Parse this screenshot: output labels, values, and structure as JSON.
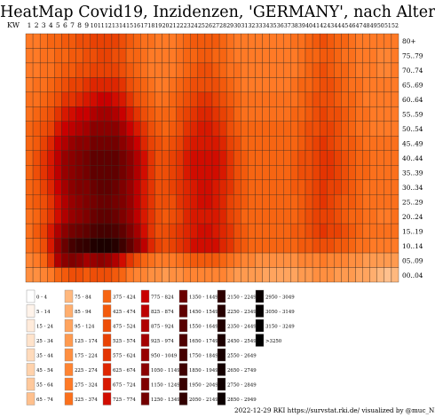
{
  "title": "HeatMap Covid19, Inzidenzen, 'GERMANY', nach Alter",
  "x_axis_label": "KW",
  "footer": "2022-12-29 RKI https://survstat.rki.de/ visualized by @muc_NEKO",
  "chart_data": {
    "type": "heatmap",
    "weeks": [
      1,
      2,
      3,
      4,
      5,
      6,
      7,
      8,
      9,
      10,
      11,
      12,
      13,
      14,
      15,
      16,
      17,
      18,
      19,
      20,
      21,
      22,
      23,
      24,
      25,
      26,
      27,
      28,
      29,
      30,
      31,
      32,
      33,
      34,
      35,
      36,
      37,
      38,
      39,
      40,
      41,
      42,
      43,
      44,
      45,
      46,
      47,
      48,
      49,
      50,
      51,
      52
    ],
    "age_groups_top_to_bottom": [
      "80+",
      "75..79",
      "70..74",
      "65..69",
      "60..64",
      "55..59",
      "50..54",
      "45..49",
      "40..44",
      "35..39",
      "30..34",
      "25..29",
      "20..24",
      "15..19",
      "10..14",
      "05..09",
      "00..04"
    ],
    "values_note": "incidence per 100k, estimated from colours",
    "values": [
      [
        300,
        320,
        350,
        380,
        420,
        440,
        460,
        480,
        500,
        540,
        560,
        560,
        540,
        500,
        440,
        400,
        360,
        330,
        300,
        300,
        320,
        350,
        400,
        440,
        460,
        460,
        440,
        400,
        360,
        320,
        300,
        300,
        300,
        300,
        300,
        300,
        300,
        330,
        360,
        400,
        440,
        480,
        460,
        420,
        380,
        340,
        320,
        300,
        290,
        280,
        280,
        290
      ],
      [
        280,
        300,
        330,
        360,
        400,
        420,
        440,
        460,
        480,
        520,
        540,
        540,
        520,
        480,
        420,
        380,
        340,
        310,
        290,
        290,
        310,
        340,
        380,
        420,
        440,
        440,
        420,
        380,
        340,
        310,
        290,
        290,
        290,
        290,
        290,
        290,
        290,
        320,
        350,
        380,
        420,
        460,
        440,
        400,
        360,
        330,
        310,
        290,
        280,
        270,
        270,
        280
      ],
      [
        280,
        300,
        330,
        360,
        400,
        430,
        460,
        480,
        500,
        540,
        560,
        560,
        540,
        500,
        440,
        390,
        350,
        320,
        300,
        300,
        320,
        360,
        420,
        460,
        480,
        480,
        460,
        420,
        370,
        330,
        300,
        300,
        300,
        300,
        300,
        300,
        300,
        320,
        360,
        400,
        440,
        480,
        460,
        420,
        380,
        340,
        310,
        290,
        280,
        270,
        270,
        280
      ],
      [
        300,
        330,
        360,
        400,
        450,
        500,
        540,
        560,
        580,
        640,
        660,
        660,
        640,
        580,
        500,
        440,
        390,
        350,
        320,
        320,
        350,
        400,
        460,
        500,
        520,
        520,
        500,
        460,
        400,
        350,
        320,
        320,
        320,
        320,
        320,
        320,
        320,
        340,
        380,
        420,
        460,
        500,
        480,
        440,
        400,
        360,
        330,
        300,
        290,
        280,
        280,
        290
      ],
      [
        330,
        360,
        400,
        460,
        520,
        580,
        620,
        660,
        680,
        760,
        800,
        800,
        760,
        680,
        580,
        500,
        440,
        390,
        350,
        350,
        380,
        440,
        500,
        560,
        580,
        580,
        560,
        500,
        440,
        380,
        340,
        340,
        340,
        340,
        340,
        340,
        340,
        360,
        400,
        440,
        480,
        520,
        500,
        460,
        420,
        380,
        350,
        320,
        300,
        290,
        290,
        300
      ],
      [
        360,
        400,
        450,
        520,
        600,
        680,
        740,
        780,
        820,
        900,
        940,
        940,
        900,
        800,
        680,
        580,
        500,
        440,
        390,
        380,
        420,
        480,
        560,
        620,
        640,
        640,
        620,
        560,
        480,
        420,
        370,
        360,
        360,
        360,
        360,
        360,
        360,
        380,
        420,
        460,
        500,
        540,
        520,
        480,
        440,
        400,
        360,
        330,
        310,
        300,
        300,
        310
      ],
      [
        380,
        430,
        490,
        570,
        680,
        780,
        860,
        920,
        960,
        1050,
        1100,
        1100,
        1050,
        940,
        800,
        680,
        580,
        500,
        430,
        420,
        460,
        520,
        600,
        660,
        680,
        680,
        660,
        600,
        520,
        450,
        390,
        380,
        380,
        380,
        380,
        380,
        380,
        400,
        440,
        480,
        520,
        560,
        540,
        500,
        450,
        410,
        370,
        340,
        320,
        310,
        310,
        320
      ],
      [
        400,
        460,
        540,
        640,
        780,
        900,
        1000,
        1080,
        1120,
        1250,
        1300,
        1300,
        1250,
        1100,
        940,
        780,
        660,
        560,
        480,
        460,
        500,
        560,
        640,
        700,
        720,
        720,
        700,
        640,
        560,
        480,
        420,
        400,
        400,
        400,
        400,
        400,
        400,
        420,
        460,
        500,
        540,
        580,
        560,
        520,
        470,
        430,
        390,
        360,
        340,
        330,
        330,
        340
      ],
      [
        420,
        480,
        580,
        700,
        860,
        1000,
        1140,
        1240,
        1300,
        1450,
        1520,
        1520,
        1450,
        1280,
        1080,
        900,
        740,
        620,
        520,
        500,
        540,
        600,
        680,
        740,
        760,
        760,
        740,
        680,
        600,
        520,
        450,
        420,
        420,
        420,
        420,
        420,
        420,
        440,
        480,
        520,
        560,
        600,
        580,
        540,
        490,
        450,
        410,
        380,
        360,
        350,
        350,
        360
      ],
      [
        420,
        480,
        580,
        700,
        860,
        1000,
        1140,
        1240,
        1300,
        1450,
        1520,
        1520,
        1450,
        1280,
        1080,
        900,
        740,
        620,
        520,
        500,
        540,
        600,
        680,
        740,
        760,
        760,
        740,
        680,
        600,
        520,
        450,
        420,
        420,
        420,
        420,
        420,
        420,
        440,
        480,
        520,
        560,
        600,
        580,
        540,
        490,
        450,
        410,
        380,
        360,
        350,
        350,
        360
      ],
      [
        400,
        460,
        540,
        650,
        800,
        940,
        1060,
        1160,
        1220,
        1380,
        1460,
        1460,
        1380,
        1220,
        1040,
        860,
        720,
        600,
        510,
        490,
        530,
        590,
        660,
        720,
        740,
        740,
        720,
        660,
        580,
        500,
        440,
        410,
        410,
        410,
        410,
        410,
        410,
        430,
        470,
        510,
        550,
        590,
        570,
        530,
        480,
        440,
        400,
        370,
        350,
        340,
        340,
        350
      ],
      [
        380,
        440,
        520,
        620,
        760,
        900,
        1020,
        1120,
        1180,
        1340,
        1420,
        1420,
        1340,
        1180,
        1000,
        840,
        700,
        590,
        500,
        480,
        520,
        580,
        650,
        710,
        730,
        730,
        710,
        650,
        570,
        490,
        430,
        400,
        400,
        400,
        400,
        400,
        400,
        420,
        460,
        500,
        540,
        580,
        560,
        520,
        470,
        430,
        390,
        360,
        340,
        330,
        330,
        340
      ],
      [
        360,
        420,
        500,
        600,
        740,
        880,
        1000,
        1100,
        1160,
        1400,
        1500,
        1500,
        1400,
        1200,
        1000,
        840,
        700,
        580,
        490,
        470,
        510,
        570,
        640,
        700,
        720,
        720,
        700,
        640,
        560,
        480,
        420,
        390,
        390,
        390,
        390,
        390,
        390,
        410,
        450,
        490,
        530,
        570,
        550,
        510,
        460,
        420,
        380,
        350,
        330,
        320,
        320,
        330
      ],
      [
        360,
        430,
        540,
        700,
        900,
        1100,
        1280,
        1400,
        1480,
        1700,
        1800,
        1800,
        1700,
        1460,
        1180,
        940,
        760,
        620,
        520,
        490,
        530,
        590,
        660,
        720,
        740,
        740,
        720,
        660,
        580,
        500,
        440,
        410,
        410,
        410,
        410,
        410,
        410,
        430,
        470,
        510,
        550,
        590,
        570,
        530,
        480,
        440,
        400,
        370,
        350,
        340,
        340,
        350
      ],
      [
        330,
        400,
        520,
        720,
        1000,
        1400,
        1800,
        2000,
        2100,
        2400,
        2500,
        2500,
        2300,
        1900,
        1450,
        1100,
        840,
        660,
        540,
        500,
        540,
        600,
        670,
        730,
        750,
        750,
        730,
        670,
        590,
        510,
        440,
        410,
        400,
        400,
        400,
        400,
        400,
        410,
        440,
        470,
        500,
        520,
        500,
        470,
        430,
        400,
        370,
        340,
        320,
        310,
        310,
        320
      ],
      [
        260,
        320,
        420,
        600,
        900,
        1100,
        1200,
        1100,
        950,
        1000,
        1050,
        1000,
        900,
        750,
        600,
        480,
        400,
        340,
        300,
        290,
        310,
        350,
        400,
        440,
        460,
        460,
        440,
        400,
        350,
        300,
        260,
        240,
        220,
        210,
        200,
        200,
        200,
        210,
        230,
        250,
        270,
        280,
        270,
        250,
        230,
        210,
        190,
        170,
        150,
        140,
        140,
        150
      ],
      [
        180,
        200,
        240,
        300,
        380,
        440,
        480,
        480,
        460,
        480,
        500,
        480,
        440,
        380,
        320,
        270,
        230,
        200,
        180,
        170,
        180,
        200,
        230,
        260,
        270,
        270,
        260,
        230,
        200,
        170,
        150,
        140,
        130,
        120,
        110,
        110,
        110,
        120,
        140,
        160,
        180,
        200,
        190,
        170,
        150,
        130,
        110,
        95,
        85,
        75,
        70,
        75
      ]
    ],
    "legend": [
      {
        "label": "0 - 4",
        "color": "#ffffff"
      },
      {
        "label": "5 - 14",
        "color": "#fff3ea"
      },
      {
        "label": "15 - 24",
        "color": "#ffebdb"
      },
      {
        "label": "25 - 34",
        "color": "#ffe3cb"
      },
      {
        "label": "35 - 44",
        "color": "#ffdbbc"
      },
      {
        "label": "45 - 54",
        "color": "#ffd2ac"
      },
      {
        "label": "55 - 64",
        "color": "#ffc99c"
      },
      {
        "label": "65 - 74",
        "color": "#ffc08d"
      },
      {
        "label": "75 - 84",
        "color": "#ffb87e"
      },
      {
        "label": "85 - 94",
        "color": "#ffae6e"
      },
      {
        "label": "95 - 124",
        "color": "#ffa45e"
      },
      {
        "label": "125 - 174",
        "color": "#ff9a4f"
      },
      {
        "label": "175 - 224",
        "color": "#ff8f40"
      },
      {
        "label": "225 - 274",
        "color": "#ff8432"
      },
      {
        "label": "275 - 324",
        "color": "#ff7a26"
      },
      {
        "label": "325 - 374",
        "color": "#fb701c"
      },
      {
        "label": "375 - 424",
        "color": "#f76512"
      },
      {
        "label": "425 - 474",
        "color": "#f35a0c"
      },
      {
        "label": "475 - 524",
        "color": "#ee4e08"
      },
      {
        "label": "525 - 574",
        "color": "#e94204"
      },
      {
        "label": "575 - 624",
        "color": "#e43402"
      },
      {
        "label": "625 - 674",
        "color": "#de2601"
      },
      {
        "label": "675 - 724",
        "color": "#d81800"
      },
      {
        "label": "725 - 774",
        "color": "#d10c00"
      },
      {
        "label": "775 - 824",
        "color": "#c90000"
      },
      {
        "label": "825 - 874",
        "color": "#bd0000"
      },
      {
        "label": "875 - 924",
        "color": "#b00000"
      },
      {
        "label": "925 - 974",
        "color": "#a40000"
      },
      {
        "label": "950 - 1049",
        "color": "#970000"
      },
      {
        "label": "1050 - 1149",
        "color": "#8b0000"
      },
      {
        "label": "1150 - 1249",
        "color": "#7f0000"
      },
      {
        "label": "1250 - 1349",
        "color": "#740000"
      },
      {
        "label": "1350 - 1449",
        "color": "#6a0000"
      },
      {
        "label": "1450 - 1549",
        "color": "#600000"
      },
      {
        "label": "1550 - 1649",
        "color": "#570000"
      },
      {
        "label": "1650 - 1749",
        "color": "#4e0000"
      },
      {
        "label": "1750 - 1849",
        "color": "#460000"
      },
      {
        "label": "1850 - 1949",
        "color": "#3f0000"
      },
      {
        "label": "1950 - 2049",
        "color": "#380000"
      },
      {
        "label": "2050 - 2149",
        "color": "#320000"
      },
      {
        "label": "2150 - 2249",
        "color": "#2c0000"
      },
      {
        "label": "2250 - 2349",
        "color": "#260000"
      },
      {
        "label": "2350 - 2449",
        "color": "#210000"
      },
      {
        "label": "2450 - 2549",
        "color": "#1c0000"
      },
      {
        "label": "2550 - 2649",
        "color": "#180000"
      },
      {
        "label": "2650 - 2749",
        "color": "#140000"
      },
      {
        "label": "2750 - 2849",
        "color": "#100000"
      },
      {
        "label": "2850 - 2949",
        "color": "#0c0000"
      },
      {
        "label": "2950 - 3049",
        "color": "#080000"
      },
      {
        "label": "3050 - 3149",
        "color": "#050000"
      },
      {
        "label": "3150 - 3249",
        "color": "#020000"
      },
      {
        "label": ">3250",
        "color": "#000000"
      }
    ]
  }
}
